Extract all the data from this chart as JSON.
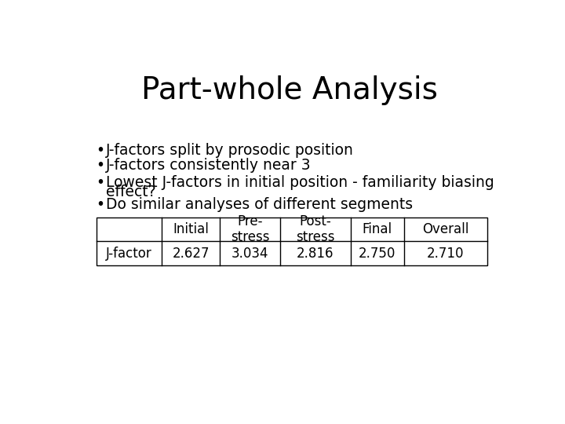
{
  "title": "Part-whole Analysis",
  "title_fontsize": 28,
  "bullet_fontsize": 13.5,
  "table_fontsize": 12,
  "bullets": [
    "J-factors split by prosodic position",
    "J-factors consistently near 3",
    "Lowest J-factors in initial position - familiarity biasing\neffect?",
    "Do similar analyses of different segments"
  ],
  "table_headers": [
    "",
    "Initial",
    "Pre-\nstress",
    "Post-\nstress",
    "Final",
    "Overall"
  ],
  "table_row": [
    "J-factor",
    "2.627",
    "3.034",
    "2.816",
    "2.750",
    "2.710"
  ],
  "background_color": "#ffffff",
  "text_color": "#000000",
  "font_family": "DejaVu Sans"
}
